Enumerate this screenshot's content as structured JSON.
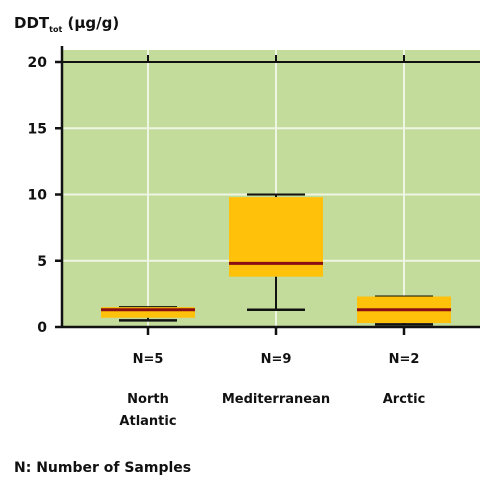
{
  "chart_data": {
    "type": "boxplot",
    "title": "DDT",
    "title_sub": "tot",
    "title_unit": " (µg/g)",
    "ylim": [
      0,
      20
    ],
    "yticks": [
      0,
      5,
      10,
      15,
      20
    ],
    "grid": true,
    "colors": {
      "plot_bg": "#c3dc9c",
      "box": "#ffc10a",
      "median": "#8b0f12",
      "grid": "#eef5e2",
      "axis": "#111111"
    },
    "groups": [
      {
        "n_label": "N=5",
        "name_lines": [
          "North",
          "Atlantic"
        ],
        "min": 0.5,
        "q1": 0.7,
        "median": 1.3,
        "q3": 1.5,
        "max": 1.5
      },
      {
        "n_label": "N=9",
        "name_lines": [
          "Mediterranean"
        ],
        "min": 1.3,
        "q1": 3.8,
        "median": 4.8,
        "q3": 9.8,
        "max": 10.0
      },
      {
        "n_label": "N=2",
        "name_lines": [
          "Arctic"
        ],
        "min": 0.2,
        "q1": 0.3,
        "median": 1.3,
        "q3": 2.3,
        "max": 2.3
      }
    ]
  },
  "footnote": "N: Number of Samples"
}
